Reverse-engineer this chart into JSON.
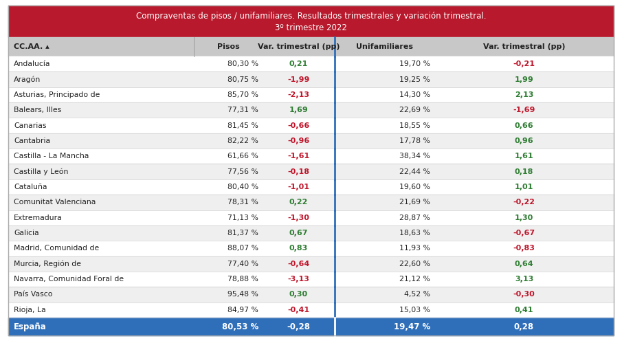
{
  "title_line1": "Compraventas de pisos / unifamiliares. Resultados trimestrales y variación trimestral.",
  "title_line2": "3º trimestre 2022",
  "title_bg": "#b8192c",
  "title_color": "#ffffff",
  "header_bg": "#c8c8c8",
  "header_color": "#222222",
  "col_headers": [
    "CC.AA. ▴",
    "Pisos",
    "Var. trimestral (pp)",
    "Unifamiliares",
    "Var. trimestral (pp)"
  ],
  "footer_bg": "#2f6fba",
  "footer_color": "#ffffff",
  "row_odd_bg": "#ffffff",
  "row_even_bg": "#efefef",
  "rows": [
    [
      "Andalucía",
      "80,30 %",
      0.21,
      "19,70 %",
      -0.21
    ],
    [
      "Aragón",
      "80,75 %",
      -1.99,
      "19,25 %",
      1.99
    ],
    [
      "Asturias, Principado de",
      "85,70 %",
      -2.13,
      "14,30 %",
      2.13
    ],
    [
      "Balears, Illes",
      "77,31 %",
      1.69,
      "22,69 %",
      -1.69
    ],
    [
      "Canarias",
      "81,45 %",
      -0.66,
      "18,55 %",
      0.66
    ],
    [
      "Cantabria",
      "82,22 %",
      -0.96,
      "17,78 %",
      0.96
    ],
    [
      "Castilla - La Mancha",
      "61,66 %",
      -1.61,
      "38,34 %",
      1.61
    ],
    [
      "Castilla y León",
      "77,56 %",
      -0.18,
      "22,44 %",
      0.18
    ],
    [
      "Cataluña",
      "80,40 %",
      -1.01,
      "19,60 %",
      1.01
    ],
    [
      "Comunitat Valenciana",
      "78,31 %",
      0.22,
      "21,69 %",
      -0.22
    ],
    [
      "Extremadura",
      "71,13 %",
      -1.3,
      "28,87 %",
      1.3
    ],
    [
      "Galicia",
      "81,37 %",
      0.67,
      "18,63 %",
      -0.67
    ],
    [
      "Madrid, Comunidad de",
      "88,07 %",
      0.83,
      "11,93 %",
      -0.83
    ],
    [
      "Murcia, Región de",
      "77,40 %",
      -0.64,
      "22,60 %",
      0.64
    ],
    [
      "Navarra, Comunidad Foral de",
      "78,88 %",
      -3.13,
      "21,12 %",
      3.13
    ],
    [
      "País Vasco",
      "95,48 %",
      0.3,
      "4,52 %",
      -0.3
    ],
    [
      "Rioja, La",
      "84,97 %",
      -0.41,
      "15,03 %",
      0.41
    ]
  ],
  "footer_row": [
    "España",
    "80,53 %",
    -0.28,
    "19,47 %",
    0.28
  ],
  "positive_color": "#2e7d32",
  "negative_color": "#c0152a",
  "divider_color": "#2f6fba",
  "outer_border_color": "#aaaaaa",
  "col_sep_color": "#aaaaaa"
}
